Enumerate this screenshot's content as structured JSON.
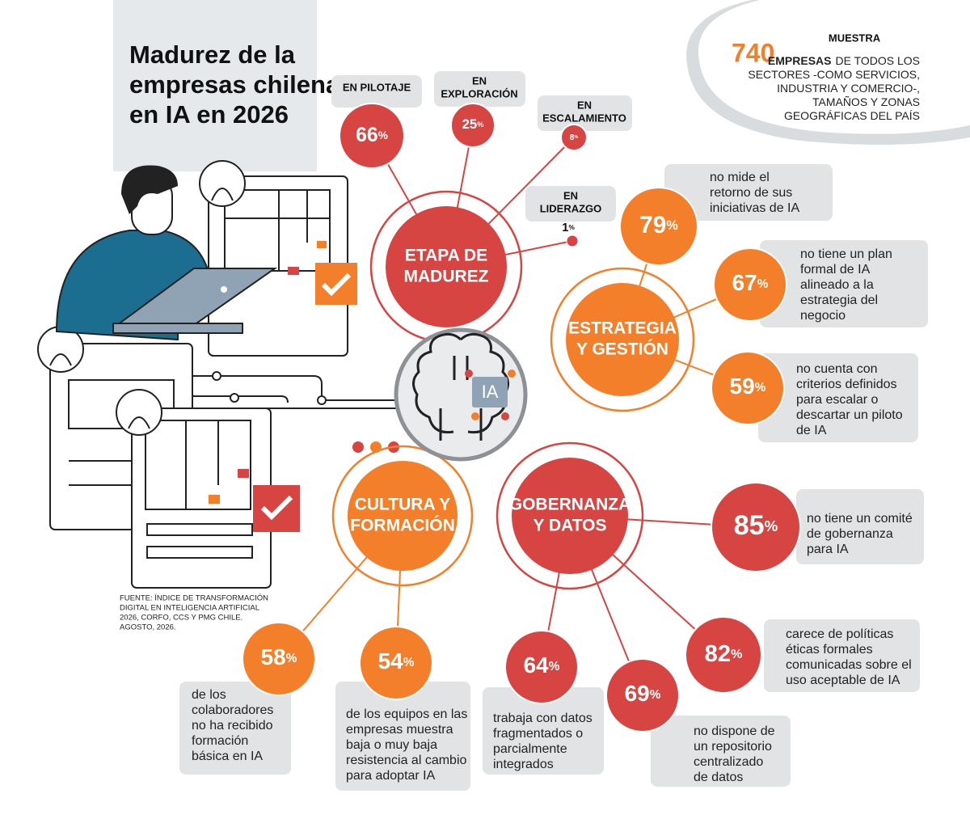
{
  "header": {
    "title": [
      "Madurez de la",
      "empresas chilenas",
      "en IA en 2026"
    ]
  },
  "sample": {
    "heading": "MUESTRA",
    "number": 740,
    "lead": "EMPRESAS",
    "lines": [
      "DE TODOS LOS",
      "SECTORES -COMO SERVICIOS,",
      "INDUSTRIA Y COMERCIO-,",
      "TAMAÑOS Y ZONAS",
      "GEOGRÁFICAS DEL PAÍS"
    ]
  },
  "hub": {
    "label": "IA"
  },
  "source": [
    "FUENTE: ÍNDICE DE TRANSFORMACIÓN",
    "DIGITAL EN INTELIGENCIA ARTIFICIAL",
    "2026, CORFO, CCS Y PMG CHILE.",
    "AGOSTO, 2026."
  ],
  "groups": [
    {
      "label": [
        "ETAPA DE",
        "MADUREZ"
      ],
      "items": [
        {
          "value": 66,
          "unit": "%",
          "text": [
            "EN PILOTAJE"
          ]
        },
        {
          "value": 25,
          "unit": "%",
          "text": [
            "EN",
            "EXPLORACIÓN"
          ]
        },
        {
          "value": 8,
          "unit": "%",
          "text": [
            "EN",
            "ESCALAMIENTO"
          ]
        },
        {
          "value": 1,
          "unit": "%",
          "text": [
            "EN",
            "LIDERAZGO"
          ]
        }
      ]
    },
    {
      "label": [
        "ESTRATEGIA",
        "Y GESTIÓN"
      ],
      "items": [
        {
          "value": 79,
          "unit": "%",
          "text": [
            "no mide el",
            "retorno de sus",
            "iniciativas de IA"
          ]
        },
        {
          "value": 67,
          "unit": "%",
          "text": [
            "no tiene un plan",
            "formal de IA",
            "alineado a la",
            "estrategia del",
            "negocio"
          ]
        },
        {
          "value": 59,
          "unit": "%",
          "text": [
            "no cuenta con",
            "criterios definidos",
            "para escalar o",
            "descartar un piloto",
            "de IA"
          ]
        }
      ]
    },
    {
      "label": [
        "GOBERNANZA",
        "Y DATOS"
      ],
      "items": [
        {
          "value": 85,
          "unit": "%",
          "text": [
            "no tiene un comité",
            "de gobernanza",
            "para IA"
          ]
        },
        {
          "value": 82,
          "unit": "%",
          "text": [
            "carece de políticas",
            "éticas formales",
            "comunicadas sobre el",
            "uso aceptable de IA"
          ]
        },
        {
          "value": 69,
          "unit": "%",
          "text": [
            "no dispone de",
            "un repositorio",
            "centralizado",
            "de datos"
          ]
        },
        {
          "value": 64,
          "unit": "%",
          "text": [
            "trabaja con datos",
            "fragmentados o",
            "parcialmente",
            "integrados"
          ]
        }
      ]
    },
    {
      "label": [
        "CULTURA Y",
        "FORMACIÓN"
      ],
      "items": [
        {
          "value": 58,
          "unit": "%",
          "text": [
            "de los",
            "colaboradores",
            "no ha recibido",
            "formación",
            "básica en IA"
          ]
        },
        {
          "value": 54,
          "unit": "%",
          "text": [
            "de los equipos en las",
            "empresas muestra",
            "baja o muy baja",
            "resistencia al cambio",
            "para adoptar IA"
          ]
        }
      ]
    }
  ]
}
